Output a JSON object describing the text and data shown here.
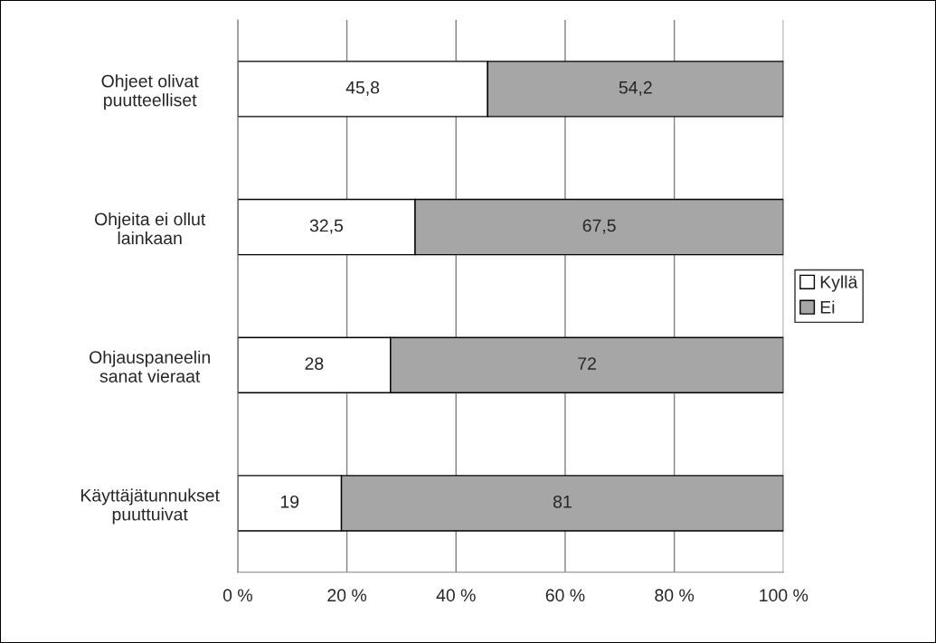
{
  "chart_data": {
    "type": "bar",
    "orientation": "horizontal",
    "stacked": true,
    "categories": [
      "Ohjeet olivat\npuutteelliset",
      "Ohjeita ei ollut\nlainkaan",
      "Ohjauspaneelin\nsanat vieraat",
      "Käyttäjätunnukset\npuuttuivat"
    ],
    "series": [
      {
        "name": "Kyllä",
        "color": "#ffffff",
        "values": [
          45.8,
          32.5,
          28,
          19
        ],
        "value_labels": [
          "45,8",
          "32,5",
          "28",
          "19"
        ]
      },
      {
        "name": "Ei",
        "color": "#a6a6a6",
        "values": [
          54.2,
          67.5,
          72,
          81
        ],
        "value_labels": [
          "54,2",
          "67,5",
          "72",
          "81"
        ]
      }
    ],
    "xlim": [
      0,
      100
    ],
    "xticks": [
      {
        "value": 0,
        "label": "0 %"
      },
      {
        "value": 20,
        "label": "20 %"
      },
      {
        "value": 40,
        "label": "40 %"
      },
      {
        "value": 60,
        "label": "60 %"
      },
      {
        "value": 80,
        "label": "80 %"
      },
      {
        "value": 100,
        "label": "100 %"
      }
    ],
    "grid": "x",
    "legend": "right"
  }
}
